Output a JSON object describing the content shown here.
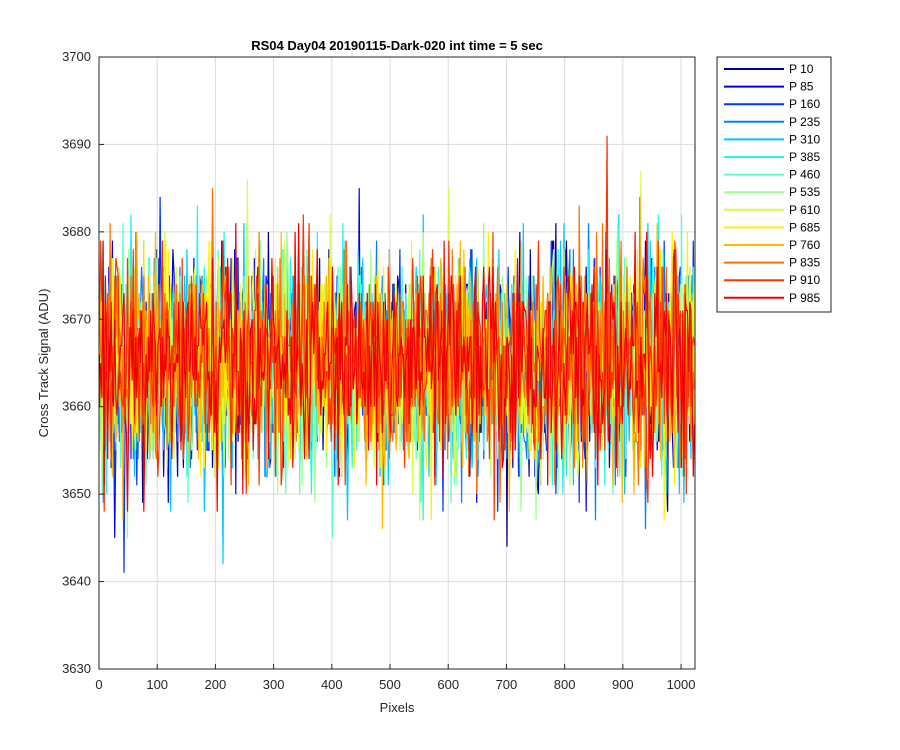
{
  "chart_data": {
    "type": "line",
    "title": "RS04 Day04 20190115-Dark-020 int time = 5 sec",
    "xlabel": "Pixels",
    "ylabel": "Cross Track Signal (ADU)",
    "xlim": [
      0,
      1024
    ],
    "ylim": [
      3630,
      3700
    ],
    "xticks": [
      0,
      100,
      200,
      300,
      400,
      500,
      600,
      700,
      800,
      900,
      1000
    ],
    "yticks": [
      3630,
      3640,
      3650,
      3660,
      3670,
      3680,
      3690,
      3700
    ],
    "grid": true,
    "legend_position": "outside-top-right",
    "series_mean": 3665,
    "series_spread": 6,
    "series": [
      {
        "name": "P 10",
        "color": "#00008F"
      },
      {
        "name": "P 85",
        "color": "#0000E0"
      },
      {
        "name": "P 160",
        "color": "#0035FF"
      },
      {
        "name": "P 235",
        "color": "#0080FF"
      },
      {
        "name": "P 310",
        "color": "#00C8FF"
      },
      {
        "name": "P 385",
        "color": "#22F5F0"
      },
      {
        "name": "P 460",
        "color": "#5CFFC8"
      },
      {
        "name": "P 535",
        "color": "#9CFF8C"
      },
      {
        "name": "P 610",
        "color": "#D2FF45"
      },
      {
        "name": "P 685",
        "color": "#FFF000"
      },
      {
        "name": "P 760",
        "color": "#FFB800"
      },
      {
        "name": "P 835",
        "color": "#FF7000"
      },
      {
        "name": "P 910",
        "color": "#FF3300"
      },
      {
        "name": "P 985",
        "color": "#F00000"
      }
    ]
  }
}
